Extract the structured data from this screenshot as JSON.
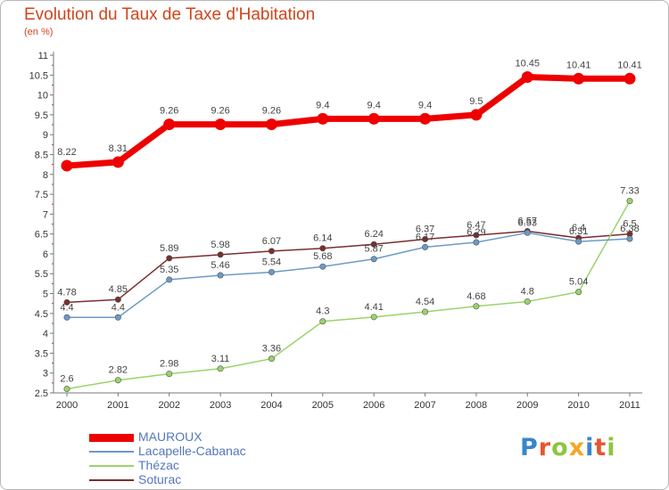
{
  "title": "Evolution du Taux de Taxe d'Habitation",
  "subtitle": "(en %)",
  "logo": {
    "text": "Proxiti",
    "letter_colors": [
      "#3a86c8",
      "#e4572e",
      "#8cc63f",
      "#f5a623",
      "#3a86c8",
      "#e4572e",
      "#8cc63f"
    ]
  },
  "chart_data": {
    "type": "line",
    "title": "Evolution du Taux de Taxe d'Habitation",
    "ylabel": "(en %)",
    "xlabel": "",
    "x": [
      "2000",
      "2001",
      "2002",
      "2003",
      "2004",
      "2005",
      "2006",
      "2007",
      "2008",
      "2009",
      "2010",
      "2011"
    ],
    "ylim": [
      2.5,
      11
    ],
    "yticks": [
      "2.5",
      "3",
      "3.5",
      "4",
      "4.5",
      "5",
      "5.5",
      "6",
      "6.5",
      "7",
      "7.5",
      "8",
      "8.5",
      "9",
      "9.5",
      "10",
      "10.5",
      "11"
    ],
    "grid": false,
    "legend_position": "bottom-left",
    "series": [
      {
        "name": "MAUROUX",
        "color": "#ee0000",
        "values": [
          8.22,
          8.31,
          9.26,
          9.26,
          9.26,
          9.4,
          9.4,
          9.4,
          9.5,
          10.45,
          10.41,
          10.41
        ],
        "labels": [
          "8.22",
          "8.31",
          "9.26",
          "9.26",
          "9.26",
          "9.4",
          "9.4",
          "9.4",
          "9.5",
          "10.45",
          "10.41",
          "10.41"
        ]
      },
      {
        "name": "Lacapelle-Cabanac",
        "color": "#6b9bc7",
        "values": [
          4.4,
          4.4,
          5.35,
          5.46,
          5.54,
          5.68,
          5.87,
          6.17,
          6.29,
          6.53,
          6.31,
          6.38
        ],
        "labels": [
          "4.4",
          "4.4",
          "5.35",
          "5.46",
          "5.54",
          "5.68",
          "5.87",
          "6.17",
          "6.29",
          "6.53",
          "6.31",
          "6.38"
        ]
      },
      {
        "name": "Thézac",
        "color": "#9bd36b",
        "values": [
          2.6,
          2.82,
          2.98,
          3.11,
          3.36,
          4.3,
          4.41,
          4.54,
          4.68,
          4.8,
          5.04,
          7.33
        ],
        "labels": [
          "2.6",
          "2.82",
          "2.98",
          "3.11",
          "3.36",
          "4.3",
          "4.41",
          "4.54",
          "4.68",
          "4.8",
          "5.04",
          "7.33"
        ]
      },
      {
        "name": "Soturac",
        "color": "#7a2e2e",
        "values": [
          4.78,
          4.85,
          5.89,
          5.98,
          6.07,
          6.14,
          6.24,
          6.37,
          6.47,
          6.57,
          6.4,
          6.5
        ],
        "labels": [
          "4.78",
          "4.85",
          "5.89",
          "5.98",
          "6.07",
          "6.14",
          "6.24",
          "6.37",
          "6.47",
          "6.57",
          "6.4",
          "6.5"
        ]
      }
    ]
  }
}
